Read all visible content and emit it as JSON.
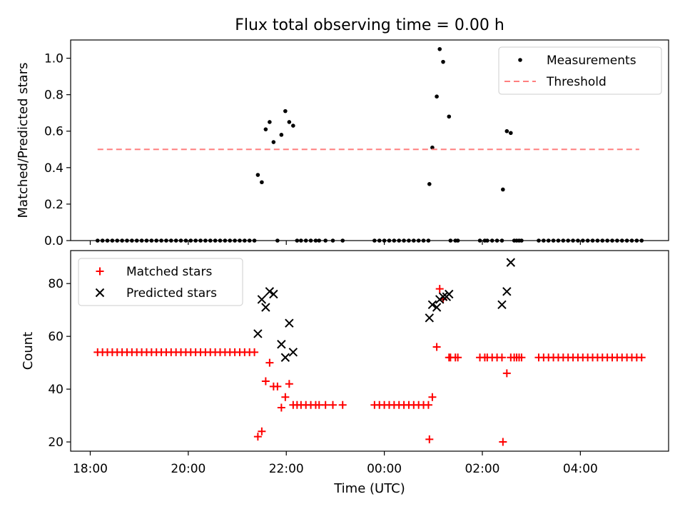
{
  "chart_data": {
    "type": "scatter",
    "title": "Flux total observing time = 0.00 h",
    "xlabel": "Time (UTC)",
    "x_ticks": [
      "18:00",
      "20:00",
      "22:00",
      "00:00",
      "02:00",
      "04:00"
    ],
    "x_tick_hours": [
      18,
      20,
      22,
      24,
      26,
      28
    ],
    "xlim_hours": [
      17.6,
      29.8
    ],
    "panels": [
      {
        "ylabel": "Matched/Predicted stars",
        "ylim": [
          0,
          1.1
        ],
        "yticks": [
          "0.0",
          "0.2",
          "0.4",
          "0.6",
          "0.8",
          "1.0"
        ],
        "ytick_values": [
          0,
          0.2,
          0.4,
          0.6,
          0.8,
          1.0
        ],
        "legend_position": "top-right",
        "series": [
          {
            "name": "Measurements",
            "marker": "dot",
            "color": "#000000",
            "x_hours": [
              18.15,
              18.25,
              18.35,
              18.45,
              18.55,
              18.65,
              18.75,
              18.85,
              18.95,
              19.05,
              19.15,
              19.25,
              19.35,
              19.45,
              19.55,
              19.65,
              19.75,
              19.85,
              19.95,
              20.05,
              20.15,
              20.25,
              20.35,
              20.45,
              20.55,
              20.65,
              20.75,
              20.85,
              20.95,
              21.05,
              21.15,
              21.25,
              21.35,
              21.42,
              21.5,
              21.58,
              21.66,
              21.74,
              21.82,
              21.9,
              21.98,
              22.06,
              22.14,
              22.22,
              22.3,
              22.4,
              22.5,
              22.6,
              22.67,
              22.8,
              22.95,
              23.15,
              23.8,
              23.9,
              24.0,
              24.1,
              24.2,
              24.3,
              24.4,
              24.5,
              24.6,
              24.7,
              24.8,
              24.9,
              24.92,
              24.98,
              25.07,
              25.13,
              25.2,
              25.32,
              25.35,
              25.45,
              25.5,
              25.95,
              26.05,
              26.1,
              26.2,
              26.3,
              26.4,
              26.42,
              26.5,
              26.58,
              26.65,
              26.7,
              26.75,
              26.8,
              27.15,
              27.25,
              27.35,
              27.45,
              27.55,
              27.65,
              27.75,
              27.85,
              27.95,
              28.05,
              28.15,
              28.25,
              28.35,
              28.45,
              28.55,
              28.65,
              28.75,
              28.85,
              28.95,
              29.05,
              29.15,
              29.25
            ],
            "y": [
              0,
              0,
              0,
              0,
              0,
              0,
              0,
              0,
              0,
              0,
              0,
              0,
              0,
              0,
              0,
              0,
              0,
              0,
              0,
              0,
              0,
              0,
              0,
              0,
              0,
              0,
              0,
              0,
              0,
              0,
              0,
              0,
              0,
              0.36,
              0.32,
              0.61,
              0.65,
              0.54,
              0,
              0.58,
              0.71,
              0.65,
              0.63,
              0,
              0,
              0,
              0,
              0,
              0,
              0,
              0,
              0,
              0,
              0,
              0,
              0,
              0,
              0,
              0,
              0,
              0,
              0,
              0,
              0,
              0.31,
              0.51,
              0.79,
              1.05,
              0.98,
              0.68,
              0,
              0,
              0,
              0,
              0,
              0,
              0,
              0,
              0,
              0.28,
              0.6,
              0.59,
              0,
              0,
              0,
              0,
              0,
              0,
              0,
              0,
              0,
              0,
              0,
              0,
              0,
              0,
              0,
              0,
              0,
              0,
              0,
              0,
              0,
              0,
              0,
              0,
              0,
              0
            ]
          },
          {
            "name": "Threshold",
            "marker": "dashed-line",
            "color": "#ff7f7f",
            "x_hours": [
              18.15,
              29.2
            ],
            "y": [
              0.5,
              0.5
            ]
          }
        ]
      },
      {
        "ylabel": "Count",
        "ylim": [
          16.5,
          92.5
        ],
        "yticks": [
          "20",
          "40",
          "60",
          "80"
        ],
        "ytick_values": [
          20,
          40,
          60,
          80
        ],
        "legend_position": "top-left",
        "series": [
          {
            "name": "Matched stars",
            "marker": "plus",
            "color": "#ff0000",
            "x_hours": [
              18.15,
              18.25,
              18.35,
              18.45,
              18.55,
              18.65,
              18.75,
              18.85,
              18.95,
              19.05,
              19.15,
              19.25,
              19.35,
              19.45,
              19.55,
              19.65,
              19.75,
              19.85,
              19.95,
              20.05,
              20.15,
              20.25,
              20.35,
              20.45,
              20.55,
              20.65,
              20.75,
              20.85,
              20.95,
              21.05,
              21.15,
              21.25,
              21.35,
              21.42,
              21.5,
              21.58,
              21.66,
              21.74,
              21.82,
              21.9,
              21.98,
              22.06,
              22.14,
              22.22,
              22.3,
              22.4,
              22.5,
              22.6,
              22.67,
              22.8,
              22.95,
              23.15,
              23.8,
              23.9,
              24.0,
              24.1,
              24.2,
              24.3,
              24.4,
              24.5,
              24.6,
              24.7,
              24.8,
              24.9,
              24.92,
              24.98,
              25.07,
              25.13,
              25.2,
              25.32,
              25.35,
              25.45,
              25.5,
              25.95,
              26.05,
              26.1,
              26.2,
              26.3,
              26.4,
              26.42,
              26.5,
              26.58,
              26.65,
              26.7,
              26.75,
              26.8,
              27.15,
              27.25,
              27.35,
              27.45,
              27.55,
              27.65,
              27.75,
              27.85,
              27.95,
              28.05,
              28.15,
              28.25,
              28.35,
              28.45,
              28.55,
              28.65,
              28.75,
              28.85,
              28.95,
              29.05,
              29.15,
              29.25
            ],
            "y": [
              54,
              54,
              54,
              54,
              54,
              54,
              54,
              54,
              54,
              54,
              54,
              54,
              54,
              54,
              54,
              54,
              54,
              54,
              54,
              54,
              54,
              54,
              54,
              54,
              54,
              54,
              54,
              54,
              54,
              54,
              54,
              54,
              54,
              22,
              24,
              43,
              50,
              41,
              41,
              33,
              37,
              42,
              34,
              34,
              34,
              34,
              34,
              34,
              34,
              34,
              34,
              34,
              34,
              34,
              34,
              34,
              34,
              34,
              34,
              34,
              34,
              34,
              34,
              34,
              21,
              37,
              56,
              78,
              74,
              52,
              52,
              52,
              52,
              52,
              52,
              52,
              52,
              52,
              52,
              20,
              46,
              52,
              52,
              52,
              52,
              52,
              52,
              52,
              52,
              52,
              52,
              52,
              52,
              52,
              52,
              52,
              52,
              52,
              52,
              52,
              52,
              52,
              52,
              52,
              52,
              52,
              52,
              52
            ]
          },
          {
            "name": "Predicted stars",
            "marker": "x",
            "color": "#000000",
            "x_hours": [
              21.42,
              21.5,
              21.58,
              21.66,
              21.74,
              21.9,
              21.98,
              22.06,
              22.14,
              24.92,
              24.98,
              25.07,
              25.13,
              25.2,
              25.27,
              25.32,
              26.4,
              26.5,
              26.58
            ],
            "y": [
              61,
              74,
              71,
              77,
              76,
              57,
              52,
              65,
              54,
              67,
              72,
              71,
              74,
              75,
              75,
              76,
              72,
              77,
              88
            ]
          }
        ]
      }
    ]
  }
}
